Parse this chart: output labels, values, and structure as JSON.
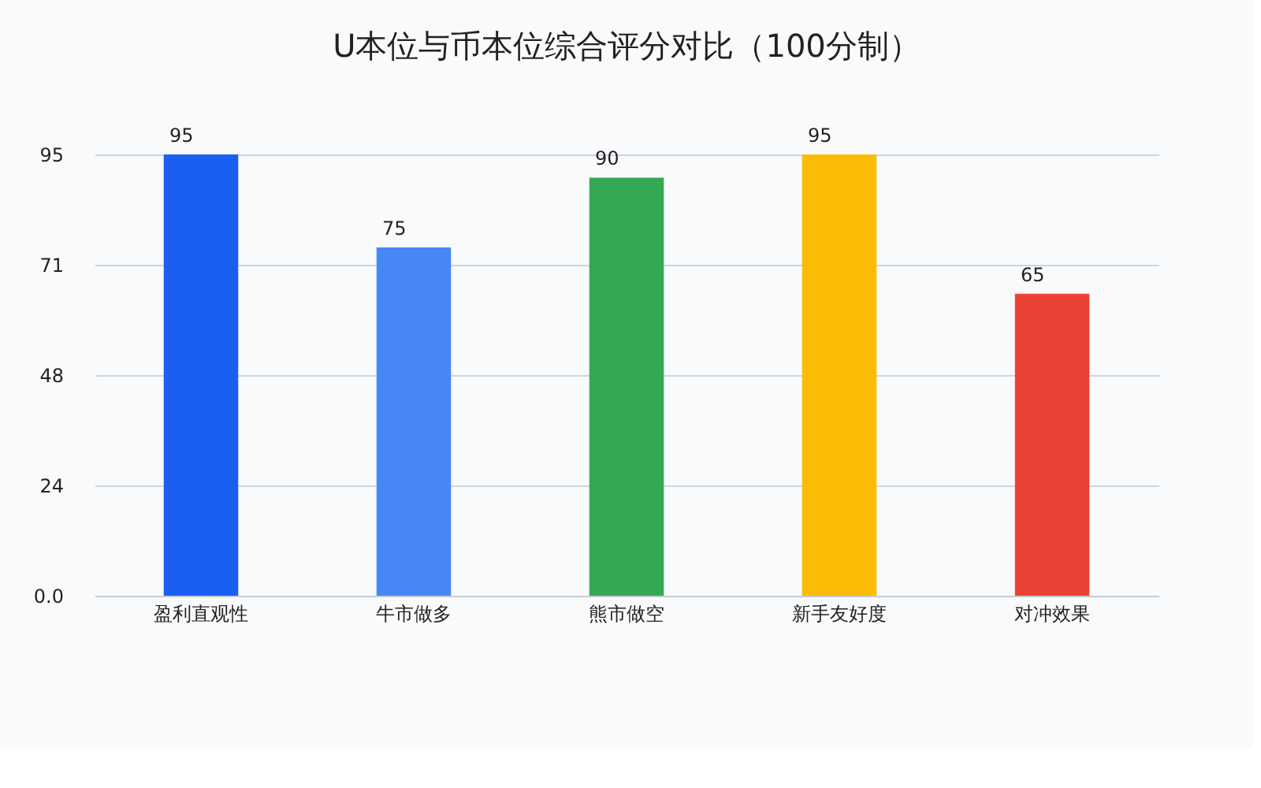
{
  "chart_data": {
    "type": "bar",
    "title": "U本位与币本位综合评分对比（100分制）",
    "categories": [
      "盈利直观性",
      "牛市做多",
      "熊市做空",
      "新手友好度",
      "对冲效果"
    ],
    "values": [
      95,
      75,
      90,
      95,
      65
    ],
    "colors": [
      "#1b5ff2",
      "#4687f5",
      "#34a853",
      "#fbbc05",
      "#ea4335"
    ],
    "ylim": [
      0,
      95
    ],
    "yticks": [
      {
        "value": 0,
        "label": "0.0"
      },
      {
        "value": 23.75,
        "label": "24"
      },
      {
        "value": 47.5,
        "label": "48"
      },
      {
        "value": 71.25,
        "label": "71"
      },
      95
    ],
    "grid": "y",
    "data_labels": true
  }
}
